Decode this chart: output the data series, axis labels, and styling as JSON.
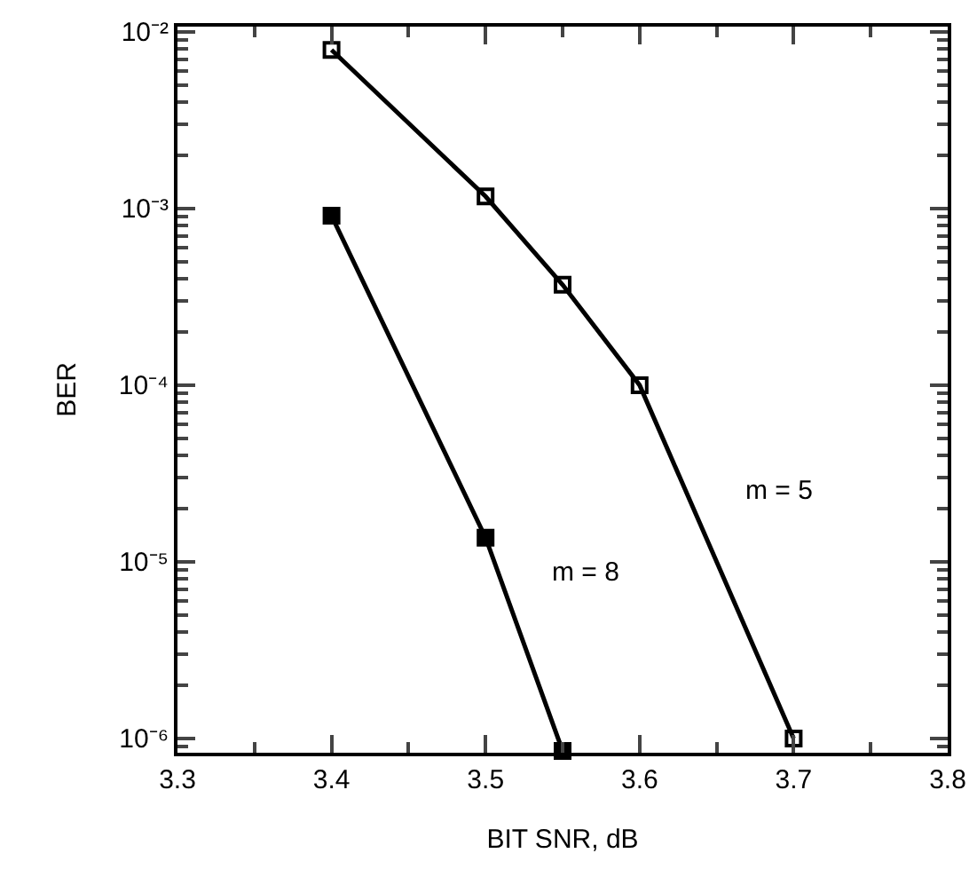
{
  "chart_data": {
    "type": "line",
    "xlabel": "BIT SNR, dB",
    "ylabel": "BER",
    "log": "y",
    "grid": false,
    "legend": false,
    "marker": "square",
    "line_style": "solid",
    "xlim": [
      3.3,
      3.8
    ],
    "xticks": [
      3.3,
      3.4,
      3.5,
      3.6,
      3.7,
      3.8
    ],
    "ylim": [
      8.3e-07,
      0.0107
    ],
    "yticks": [
      {
        "value": 0.01,
        "label": "10⁻²"
      },
      {
        "value": 0.001,
        "label": "10⁻³"
      },
      {
        "value": 0.0001,
        "label": "10⁻⁴"
      },
      {
        "value": 1e-05,
        "label": "10⁻⁵"
      },
      {
        "value": 1e-06,
        "label": "10⁻⁶"
      }
    ],
    "series": [
      {
        "name": "m = 5",
        "color": "#000000",
        "x": [
          3.4,
          3.5,
          3.55,
          3.6,
          3.7
        ],
        "values": [
          0.0079,
          0.00117,
          0.00037,
          0.0001,
          1e-06
        ]
      },
      {
        "name": "m = 8",
        "color": "#000000",
        "x": [
          3.4,
          3.5,
          3.55
        ],
        "values": [
          0.00091,
          1.37e-05,
          8.5e-07
        ]
      }
    ]
  }
}
